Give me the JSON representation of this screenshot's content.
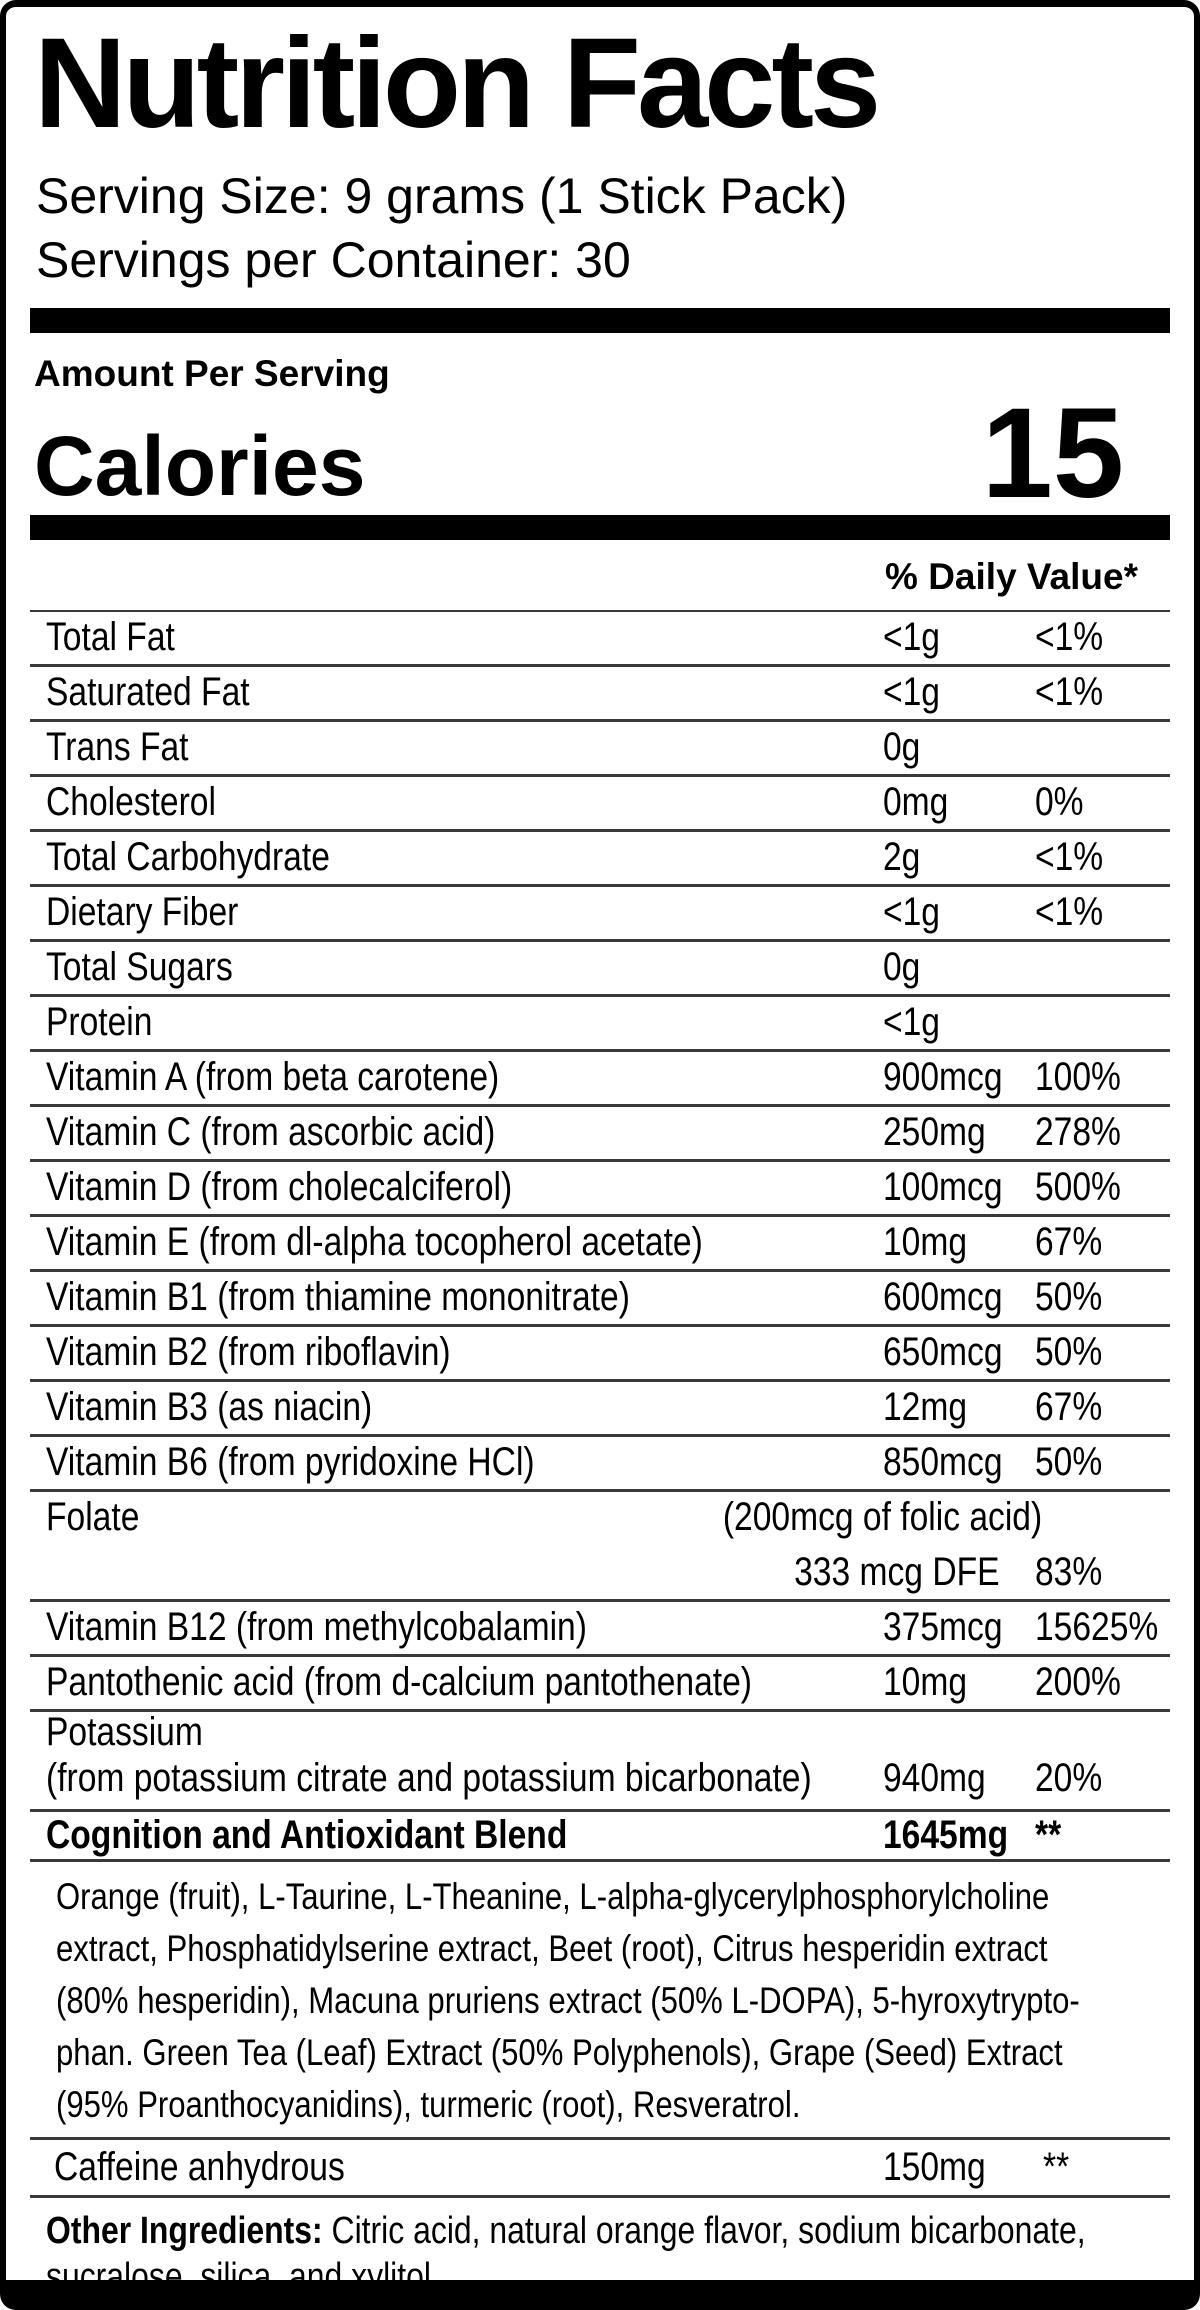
{
  "header": {
    "title": "Nutrition Facts",
    "serving_size": "Serving Size: 9 grams (1 Stick Pack)",
    "servings_per_container": "Servings per Container: 30"
  },
  "summary": {
    "amount_per_serving": "Amount Per Serving",
    "calories_label": "Calories",
    "calories_value": "15"
  },
  "table": {
    "daily_value_header": "% Daily Value*",
    "rows": [
      {
        "name": "Total Fat",
        "amount": "<1g",
        "dv": "<1%"
      },
      {
        "name": "Saturated Fat",
        "amount": "<1g",
        "dv": "<1%"
      },
      {
        "name": "Trans Fat",
        "amount": "0g",
        "dv": ""
      },
      {
        "name": "Cholesterol",
        "amount": "0mg",
        "dv": "0%"
      },
      {
        "name": "Total Carbohydrate",
        "amount": "2g",
        "dv": "<1%"
      },
      {
        "name": "Dietary Fiber",
        "amount": "<1g",
        "dv": "<1%"
      },
      {
        "name": "Total Sugars",
        "amount": "0g",
        "dv": ""
      },
      {
        "name": "Protein",
        "amount": "<1g",
        "dv": ""
      },
      {
        "name": "Vitamin A (from beta carotene)",
        "amount": "900mcg",
        "dv": "100%"
      },
      {
        "name": "Vitamin C (from ascorbic acid)",
        "amount": "250mg",
        "dv": "278%"
      },
      {
        "name": "Vitamin D (from cholecalciferol)",
        "amount": "100mcg",
        "dv": "500%"
      },
      {
        "name": "Vitamin E (from dl-alpha tocopherol acetate)",
        "amount": "10mg",
        "dv": "67%"
      },
      {
        "name": "Vitamin B1 (from thiamine mononitrate)",
        "amount": "600mcg",
        "dv": "50%"
      },
      {
        "name": "Vitamin B2 (from riboflavin)",
        "amount": "650mcg",
        "dv": "50%"
      },
      {
        "name": "Vitamin B3 (as niacin)",
        "amount": "12mg",
        "dv": "67%"
      },
      {
        "name": "Vitamin B6 (from pyridoxine HCl)",
        "amount": "850mcg",
        "dv": "50%"
      }
    ],
    "folate": {
      "name": "Folate",
      "note": "(200mcg of folic acid)",
      "amount": "333 mcg DFE",
      "dv": "83%"
    },
    "vitamin_b12": {
      "name": "Vitamin B12 (from methylcobalamin)",
      "amount": "375mcg",
      "dv": "15625%"
    },
    "pantothenic_acid": {
      "name": "Pantothenic acid (from d-calcium pantothenate)",
      "amount": "10mg",
      "dv": "200%"
    },
    "potassium": {
      "name": "Potassium",
      "source": "(from potassium citrate and potassium bicarbonate)",
      "amount": "940mg",
      "dv": "20%"
    },
    "blend": {
      "name": "Cognition and Antioxidant Blend",
      "amount": "1645mg",
      "dv": "**",
      "description_lines": [
        "Orange (fruit), L-Taurine, L-Theanine, L-alpha-glycerylphosphorylcholine",
        "extract, Phosphatidylserine extract, Beet (root), Citrus hesperidin extract",
        "(80% hesperidin), Macuna pruriens extract (50% L-DOPA), 5-hyroxytrypto-",
        "phan. Green Tea (Leaf) Extract (50% Polyphenols), Grape (Seed) Extract",
        "(95% Proanthocyanidins), turmeric (root), Resveratrol."
      ]
    },
    "caffeine": {
      "name": "Caffeine anhydrous",
      "amount": "150mg",
      "dv": "**"
    }
  },
  "other_ingredients": {
    "label": "Other Ingredients:",
    "line1": " Citric acid, natural orange flavor, sodium bicarbonate,",
    "line2": "sucralose, silica, and xylitol."
  },
  "colors": {
    "background": "#ffffff",
    "text": "#000000",
    "separator": "#3a3a3a",
    "bar": "#000000"
  }
}
